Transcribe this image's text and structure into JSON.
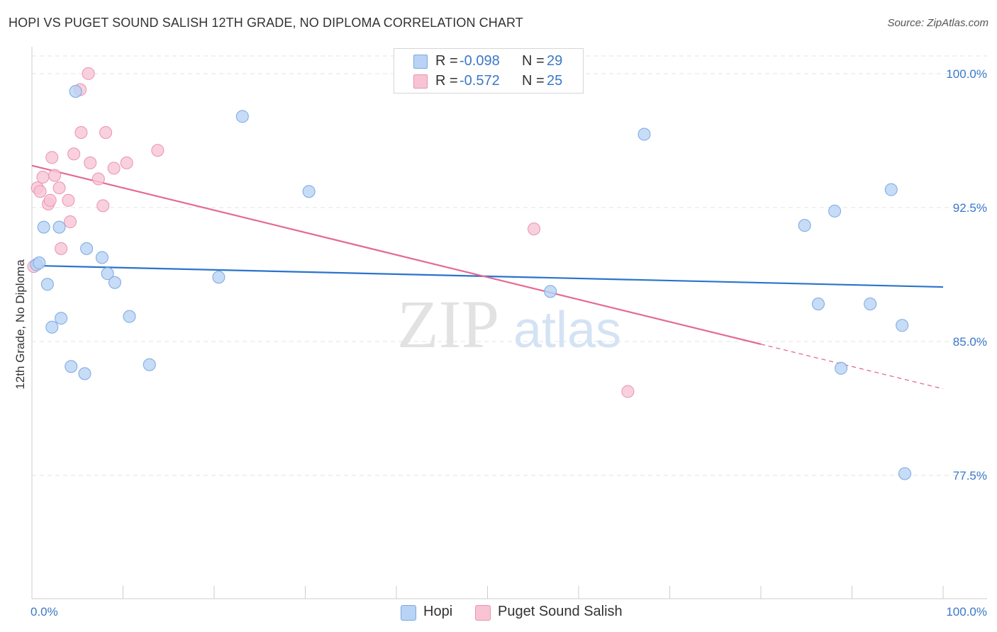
{
  "title": "HOPI VS PUGET SOUND SALISH 12TH GRADE, NO DIPLOMA CORRELATION CHART",
  "source": "Source: ZipAtlas.com",
  "watermark": {
    "zip": "ZIP",
    "atlas": "atlas"
  },
  "legend": {
    "hopi": {
      "r_label": "R =",
      "r_value": "-0.098",
      "n_label": "N =",
      "n_value": "29"
    },
    "salish": {
      "r_label": "R =",
      "r_value": "-0.572",
      "n_label": "N =",
      "n_value": "25"
    }
  },
  "colors": {
    "hopi_fill": "#b8d3f5",
    "hopi_stroke": "#7aa8e0",
    "hopi_line": "#2a73cc",
    "salish_fill": "#f8c4d4",
    "salish_stroke": "#e893b0",
    "salish_line": "#e46a95",
    "tick_label": "#3b78c8",
    "grid": "#e3e3e3"
  },
  "chart_data": {
    "type": "scatter",
    "title": "HOPI VS PUGET SOUND SALISH 12TH GRADE, NO DIPLOMA CORRELATION CHART",
    "xlabel": "",
    "ylabel": "12th Grade, No Diploma",
    "xlim": [
      0,
      100
    ],
    "ylim": [
      70.6,
      101.5
    ],
    "x_tick_labels": [
      {
        "value": 0,
        "label": "0.0%"
      },
      {
        "value": 100,
        "label": "100.0%"
      }
    ],
    "y_tick_labels": [
      {
        "value": 100.0,
        "label": "100.0%"
      },
      {
        "value": 92.5,
        "label": "92.5%"
      },
      {
        "value": 85.0,
        "label": "85.0%"
      },
      {
        "value": 77.5,
        "label": "77.5%"
      }
    ],
    "grid": true,
    "legend_position": "bottom-center",
    "series": [
      {
        "name": "Hopi",
        "points": [
          {
            "x": 0.5,
            "y": 89.3
          },
          {
            "x": 0.8,
            "y": 89.4
          },
          {
            "x": 1.3,
            "y": 91.4
          },
          {
            "x": 1.7,
            "y": 88.2
          },
          {
            "x": 2.2,
            "y": 85.8
          },
          {
            "x": 3.0,
            "y": 91.4
          },
          {
            "x": 3.2,
            "y": 86.3
          },
          {
            "x": 4.3,
            "y": 83.6
          },
          {
            "x": 4.8,
            "y": 99.0
          },
          {
            "x": 5.8,
            "y": 83.2
          },
          {
            "x": 6.0,
            "y": 90.2
          },
          {
            "x": 7.7,
            "y": 89.7
          },
          {
            "x": 8.3,
            "y": 88.8
          },
          {
            "x": 9.1,
            "y": 88.3
          },
          {
            "x": 10.7,
            "y": 86.4
          },
          {
            "x": 12.9,
            "y": 83.7
          },
          {
            "x": 20.5,
            "y": 88.6
          },
          {
            "x": 23.1,
            "y": 97.6
          },
          {
            "x": 30.4,
            "y": 93.4
          },
          {
            "x": 56.9,
            "y": 87.8
          },
          {
            "x": 67.2,
            "y": 96.6
          },
          {
            "x": 84.8,
            "y": 91.5
          },
          {
            "x": 86.3,
            "y": 87.1
          },
          {
            "x": 88.1,
            "y": 92.3
          },
          {
            "x": 88.8,
            "y": 83.5
          },
          {
            "x": 92.0,
            "y": 87.1
          },
          {
            "x": 94.3,
            "y": 93.5
          },
          {
            "x": 95.5,
            "y": 85.9
          },
          {
            "x": 95.8,
            "y": 77.6
          }
        ],
        "trend": {
          "x0": 0,
          "y0": 89.25,
          "x1": 100,
          "y1": 88.05
        }
      },
      {
        "name": "Puget Sound Salish",
        "points": [
          {
            "x": 0.2,
            "y": 89.2
          },
          {
            "x": 0.6,
            "y": 93.6
          },
          {
            "x": 0.9,
            "y": 93.4
          },
          {
            "x": 1.2,
            "y": 94.2
          },
          {
            "x": 1.8,
            "y": 92.7
          },
          {
            "x": 2.0,
            "y": 92.9
          },
          {
            "x": 2.2,
            "y": 95.3
          },
          {
            "x": 2.5,
            "y": 94.3
          },
          {
            "x": 3.0,
            "y": 93.6
          },
          {
            "x": 3.2,
            "y": 90.2
          },
          {
            "x": 4.0,
            "y": 92.9
          },
          {
            "x": 4.2,
            "y": 91.7
          },
          {
            "x": 4.6,
            "y": 95.5
          },
          {
            "x": 5.3,
            "y": 99.1
          },
          {
            "x": 5.4,
            "y": 96.7
          },
          {
            "x": 6.2,
            "y": 100.0
          },
          {
            "x": 6.4,
            "y": 95.0
          },
          {
            "x": 7.3,
            "y": 94.1
          },
          {
            "x": 7.8,
            "y": 92.6
          },
          {
            "x": 8.1,
            "y": 96.7
          },
          {
            "x": 9.0,
            "y": 94.7
          },
          {
            "x": 10.4,
            "y": 95.0
          },
          {
            "x": 13.8,
            "y": 95.7
          },
          {
            "x": 55.1,
            "y": 91.3
          },
          {
            "x": 65.4,
            "y": 82.2
          }
        ],
        "trend": {
          "x0": 0,
          "y0": 94.85,
          "x1": 80,
          "y1": 84.85
        },
        "trend_extension": {
          "x0": 80,
          "y0": 84.85,
          "x1": 100,
          "y1": 82.35
        }
      }
    ]
  },
  "bottom_legend": {
    "hopi_label": "Hopi",
    "salish_label": "Puget Sound Salish"
  }
}
